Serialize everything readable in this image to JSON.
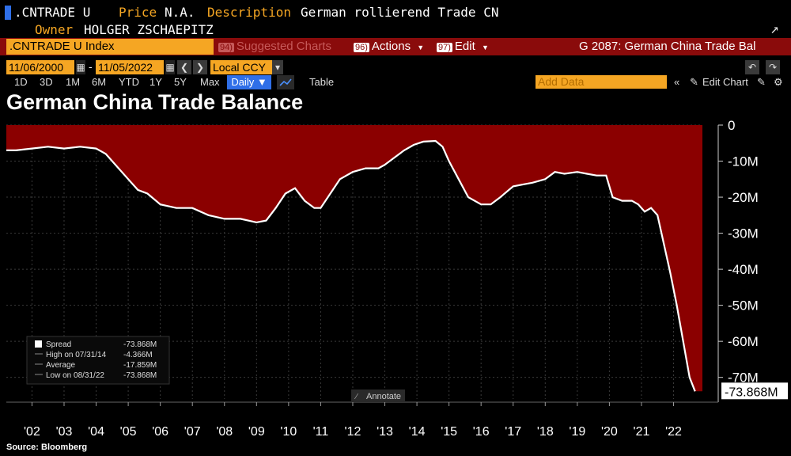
{
  "header": {
    "ticker": ".CNTRADE U",
    "price_label": "Price",
    "price_value": "N.A.",
    "description_label": "Description",
    "description_value": "German rollierend Trade CN",
    "owner_label": "Owner",
    "owner_value": "HOLGER ZSCHAEPITZ",
    "corner_icon": "exit-icon"
  },
  "toolbar": {
    "index_label": ".CNTRADE U Index",
    "suggested_num": "94)",
    "suggested_label": "Suggested Charts",
    "actions_num": "96)",
    "actions_label": "Actions",
    "edit_num": "97)",
    "edit_label": "Edit",
    "chart_id": "G 2087: German China Trade Bal"
  },
  "dates": {
    "start": "11/06/2000",
    "separator": "-",
    "end": "11/05/2022",
    "currency": "Local CCY"
  },
  "ranges": {
    "items": [
      "1D",
      "3D",
      "1M",
      "6M",
      "YTD",
      "1Y",
      "5Y",
      "Max"
    ],
    "frequency": "Daily ▼",
    "table_label": "Table",
    "add_data_placeholder": "Add Data",
    "edit_chart_label": "Edit Chart"
  },
  "chart_data": {
    "type": "area",
    "title": "German China Trade Balance",
    "source": "Source: Bloomberg",
    "yunit": "M",
    "ylim": [
      -76,
      0
    ],
    "xlim": [
      2001.2,
      2022.9
    ],
    "yticks": [
      0,
      -10,
      -20,
      -30,
      -40,
      -50,
      -60,
      -70
    ],
    "ytick_labels": [
      "0",
      "-10M",
      "-20M",
      "-30M",
      "-40M",
      "-50M",
      "-60M",
      "-70M"
    ],
    "xtick_labels": [
      "'02",
      "'03",
      "'04",
      "'05",
      "'06",
      "'07",
      "'08",
      "'09",
      "'10",
      "'11",
      "'12",
      "'13",
      "'14",
      "'15",
      "'16",
      "'17",
      "'18",
      "'19",
      "'20",
      "'21",
      "'22"
    ],
    "xtick_values": [
      2002,
      2003,
      2004,
      2005,
      2006,
      2007,
      2008,
      2009,
      2010,
      2011,
      2012,
      2013,
      2014,
      2015,
      2016,
      2017,
      2018,
      2019,
      2020,
      2021,
      2022
    ],
    "last_value_label": "-73.868M",
    "fill_color": "#8b0000",
    "line_color": "#ffffff",
    "annotate_label": "Annotate",
    "legend": [
      {
        "name": "Spread",
        "value": "-73.868M"
      },
      {
        "name": "High on 07/31/14",
        "value": "-4.366M"
      },
      {
        "name": "Average",
        "value": "-17.859M"
      },
      {
        "name": "Low on 08/31/22",
        "value": "-73.868M"
      }
    ],
    "series": [
      {
        "x": [
          2001.2,
          2001.5,
          2002.0,
          2002.5,
          2003.0,
          2003.5,
          2004.0,
          2004.3,
          2004.6,
          2005.0,
          2005.3,
          2005.6,
          2006.0,
          2006.5,
          2007.0,
          2007.5,
          2008.0,
          2008.5,
          2009.0,
          2009.3,
          2009.6,
          2009.9,
          2010.2,
          2010.5,
          2010.8,
          2011.0,
          2011.3,
          2011.6,
          2012.0,
          2012.4,
          2012.8,
          2013.0,
          2013.3,
          2013.6,
          2013.9,
          2014.2,
          2014.58,
          2014.8,
          2015.0,
          2015.3,
          2015.6,
          2016.0,
          2016.3,
          2016.6,
          2017.0,
          2017.3,
          2017.6,
          2018.0,
          2018.3,
          2018.6,
          2019.0,
          2019.3,
          2019.6,
          2019.9,
          2020.1,
          2020.4,
          2020.7,
          2020.9,
          2021.1,
          2021.3,
          2021.5,
          2021.7,
          2021.9,
          2022.1,
          2022.3,
          2022.5,
          2022.67
        ],
        "y": [
          -7,
          -7,
          -6.5,
          -6,
          -6.5,
          -6,
          -6.5,
          -8,
          -11,
          -15,
          -18,
          -19,
          -22,
          -23,
          -23,
          -25,
          -26,
          -26,
          -27,
          -26.5,
          -23,
          -19,
          -17.5,
          -21,
          -23,
          -23,
          -19,
          -15,
          -13,
          -12,
          -12,
          -11,
          -9,
          -7,
          -5.5,
          -4.6,
          -4.4,
          -6,
          -10,
          -15,
          -20,
          -22,
          -22,
          -20,
          -17,
          -16.5,
          -16,
          -15,
          -13,
          -13.5,
          -13,
          -13.5,
          -14,
          -14,
          -20,
          -21,
          -21,
          -22,
          -24,
          -23,
          -25,
          -33,
          -41,
          -50,
          -60,
          -70,
          -73.868
        ]
      }
    ]
  }
}
